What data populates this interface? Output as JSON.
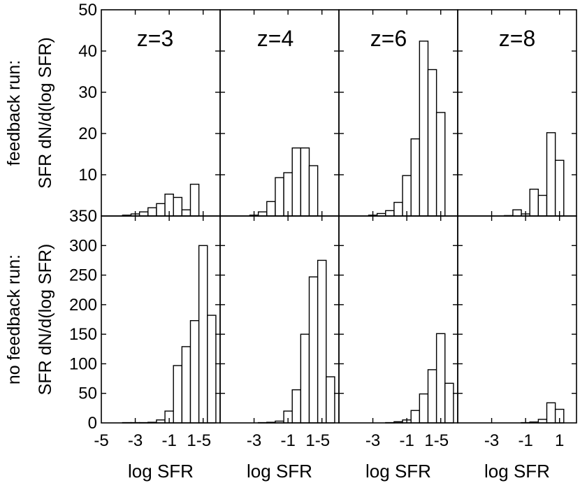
{
  "chart_data": {
    "type": "bar",
    "title": "",
    "xlabel": "log SFR",
    "bin_width": 0.5,
    "xlim": [
      -5,
      2
    ],
    "xticks": [
      -5,
      -3,
      -1,
      1
    ],
    "xtick_labels": [
      "-5",
      "-3",
      "-1",
      "1"
    ],
    "x_shared_tick_labels": [
      "-5",
      "-3",
      "-1",
      "1-5",
      "-3",
      "-1",
      "1-5",
      "-3",
      "-1",
      "1-5",
      "-3",
      "-1",
      "1"
    ],
    "rows": [
      {
        "name": "feedback",
        "ylabel_line1": "feedback run:",
        "ylabel_line2": "SFR dN/d(log SFR)",
        "ylim": [
          0,
          50
        ],
        "yticks": [
          10,
          20,
          30,
          40,
          50
        ],
        "ytick_labels": [
          "10",
          "20",
          "30",
          "40",
          "50"
        ]
      },
      {
        "name": "no-feedback",
        "ylabel_line1": "no feedback run:",
        "ylabel_line2": "SFR dN/d(log SFR)",
        "ylim": [
          0,
          350
        ],
        "yticks": [
          0,
          50,
          100,
          150,
          200,
          250,
          300,
          350
        ],
        "ytick_labels": [
          "0",
          "50",
          "100",
          "150",
          "200",
          "250",
          "300",
          "350"
        ]
      }
    ],
    "columns": [
      {
        "label": "z=3"
      },
      {
        "label": "z=4"
      },
      {
        "label": "z=6"
      },
      {
        "label": "z=8"
      }
    ],
    "panels": [
      {
        "row": 0,
        "col": 0,
        "bins": [
          {
            "x": -3.5,
            "y": 0.2
          },
          {
            "x": -3.0,
            "y": 0.5
          },
          {
            "x": -2.5,
            "y": 1.0
          },
          {
            "x": -2.0,
            "y": 2.0
          },
          {
            "x": -1.5,
            "y": 3.0
          },
          {
            "x": -1.0,
            "y": 5.3
          },
          {
            "x": -0.5,
            "y": 4.5
          },
          {
            "x": 0.0,
            "y": 1.5
          },
          {
            "x": 0.5,
            "y": 7.7
          }
        ]
      },
      {
        "row": 0,
        "col": 1,
        "bins": [
          {
            "x": -3.0,
            "y": 0.2
          },
          {
            "x": -2.5,
            "y": 1.0
          },
          {
            "x": -2.0,
            "y": 3.5
          },
          {
            "x": -1.5,
            "y": 9.3
          },
          {
            "x": -1.0,
            "y": 10.5
          },
          {
            "x": -0.5,
            "y": 16.5
          },
          {
            "x": 0.0,
            "y": 16.5
          },
          {
            "x": 0.5,
            "y": 12.2
          }
        ]
      },
      {
        "row": 0,
        "col": 2,
        "bins": [
          {
            "x": -3.0,
            "y": 0.2
          },
          {
            "x": -2.5,
            "y": 0.6
          },
          {
            "x": -2.0,
            "y": 1.3
          },
          {
            "x": -1.5,
            "y": 3.3
          },
          {
            "x": -1.0,
            "y": 9.8
          },
          {
            "x": -0.5,
            "y": 18.7
          },
          {
            "x": 0.0,
            "y": 42.4
          },
          {
            "x": 0.5,
            "y": 35.5
          },
          {
            "x": 1.0,
            "y": 25.1
          }
        ]
      },
      {
        "row": 0,
        "col": 3,
        "bins": [
          {
            "x": -2.0,
            "y": 0.1
          },
          {
            "x": -1.5,
            "y": 1.5
          },
          {
            "x": -1.0,
            "y": 0.5
          },
          {
            "x": -0.5,
            "y": 6.5
          },
          {
            "x": 0.0,
            "y": 5.0
          },
          {
            "x": 0.5,
            "y": 20.2
          },
          {
            "x": 1.0,
            "y": 13.5
          }
        ]
      },
      {
        "row": 1,
        "col": 0,
        "bins": [
          {
            "x": -3.5,
            "y": 0.5
          },
          {
            "x": -3.0,
            "y": 0.5
          },
          {
            "x": -2.5,
            "y": 0.5
          },
          {
            "x": -2.0,
            "y": 1.0
          },
          {
            "x": -1.5,
            "y": 5.0
          },
          {
            "x": -1.0,
            "y": 20.0
          },
          {
            "x": -0.5,
            "y": 97.0
          },
          {
            "x": 0.0,
            "y": 129.0
          },
          {
            "x": 0.5,
            "y": 173.0
          },
          {
            "x": 1.0,
            "y": 300.0
          },
          {
            "x": 1.5,
            "y": 182.0
          }
        ]
      },
      {
        "row": 1,
        "col": 1,
        "bins": [
          {
            "x": -2.5,
            "y": 0.5
          },
          {
            "x": -2.0,
            "y": 1.0
          },
          {
            "x": -1.5,
            "y": 3.0
          },
          {
            "x": -1.0,
            "y": 20.0
          },
          {
            "x": -0.5,
            "y": 56.0
          },
          {
            "x": 0.0,
            "y": 150.0
          },
          {
            "x": 0.5,
            "y": 247.0
          },
          {
            "x": 1.0,
            "y": 275.0
          },
          {
            "x": 1.5,
            "y": 78.0
          }
        ]
      },
      {
        "row": 1,
        "col": 2,
        "bins": [
          {
            "x": -2.0,
            "y": 0.5
          },
          {
            "x": -1.5,
            "y": 2.0
          },
          {
            "x": -1.0,
            "y": 5.0
          },
          {
            "x": -0.5,
            "y": 21.0
          },
          {
            "x": 0.0,
            "y": 49.0
          },
          {
            "x": 0.5,
            "y": 90.0
          },
          {
            "x": 1.0,
            "y": 151.0
          },
          {
            "x": 1.5,
            "y": 67.0
          }
        ]
      },
      {
        "row": 1,
        "col": 3,
        "bins": [
          {
            "x": -1.0,
            "y": 0.5
          },
          {
            "x": -0.5,
            "y": 1.5
          },
          {
            "x": 0.0,
            "y": 6.0
          },
          {
            "x": 0.5,
            "y": 34.0
          },
          {
            "x": 1.0,
            "y": 23.0
          }
        ]
      }
    ]
  }
}
